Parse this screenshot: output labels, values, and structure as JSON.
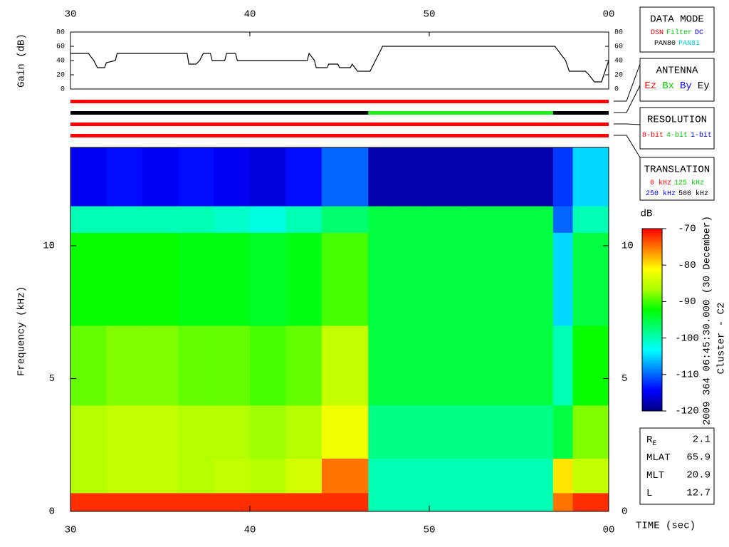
{
  "chart_data": [
    {
      "type": "line",
      "y_label": "Gain (dB)",
      "color": "#000000",
      "x": [
        30,
        31,
        31.3,
        31.5,
        31.9,
        32,
        32.5,
        32.6,
        36.5,
        36.6,
        37,
        37.2,
        37.4,
        37.8,
        37.9,
        38.6,
        38.7,
        39.2,
        39.3,
        43.2,
        43.3,
        43.6,
        43.7,
        44.3,
        44.4,
        44.9,
        45,
        45.6,
        45.7,
        46,
        46.7,
        47,
        47.4,
        57,
        57.6,
        57.8,
        58.7,
        58.9,
        59.2,
        59.6,
        59.8,
        60
      ],
      "values": [
        50,
        50,
        40,
        30,
        30,
        37,
        40,
        50,
        50,
        35,
        35,
        40,
        50,
        50,
        40,
        40,
        50,
        50,
        40,
        40,
        50,
        40,
        30,
        30,
        35,
        35,
        30,
        30,
        35,
        25,
        25,
        40,
        60,
        60,
        40,
        25,
        25,
        20,
        10,
        10,
        25,
        40
      ],
      "xlim": [
        30,
        60
      ],
      "xticks": [
        30,
        40,
        50,
        {
          "value": 60,
          "label": "00"
        }
      ],
      "ylim": [
        0,
        80
      ],
      "yticks": [
        0,
        20,
        40,
        60,
        80
      ]
    },
    {
      "type": "status",
      "xlim": [
        30,
        60
      ],
      "rows": [
        {
          "segments": [
            {
              "start": 30,
              "end": 60,
              "color": "#ff0000"
            }
          ]
        },
        {
          "segments": [
            {
              "start": 30,
              "end": 46.6,
              "color": "#000000"
            },
            {
              "start": 46.6,
              "end": 56.9,
              "color": "#22ee22"
            },
            {
              "start": 56.9,
              "end": 60,
              "color": "#000000"
            }
          ]
        },
        {
          "segments": [
            {
              "start": 30,
              "end": 60,
              "color": "#ff0000"
            }
          ]
        },
        {
          "segments": [
            {
              "start": 30,
              "end": 60,
              "color": "#ff0000"
            }
          ]
        }
      ]
    },
    {
      "type": "heatmap",
      "x_label": "TIME (sec)",
      "y_label": "Frequency (kHz)",
      "x_bins": [
        30,
        32,
        34,
        36,
        38,
        40,
        42,
        44,
        46.6,
        48,
        50,
        52,
        54,
        56.9,
        58,
        60
      ],
      "y_bins": [
        0,
        0.7,
        2,
        4,
        7,
        10.5,
        11.5,
        13.7
      ],
      "values": [
        [
          -72,
          -72,
          -72,
          -72,
          -72,
          -72,
          -72,
          -72,
          -100,
          -100,
          -100,
          -100,
          -100,
          -75,
          -72
        ],
        [
          -86,
          -85,
          -85,
          -86,
          -85,
          -86,
          -84,
          -75,
          -100,
          -100,
          -100,
          -100,
          -100,
          -80,
          -85
        ],
        [
          -86,
          -85,
          -85,
          -86,
          -86,
          -87,
          -86,
          -82,
          -98,
          -98,
          -98,
          -98,
          -98,
          -95,
          -88
        ],
        [
          -89,
          -88,
          -88,
          -89,
          -89,
          -90,
          -89,
          -85,
          -95,
          -95,
          -95,
          -95,
          -95,
          -100,
          -92
        ],
        [
          -92,
          -92,
          -92,
          -93,
          -93,
          -94,
          -93,
          -90,
          -95,
          -95,
          -95,
          -95,
          -95,
          -105,
          -95
        ],
        [
          -100,
          -100,
          -100,
          -100,
          -101,
          -102,
          -100,
          -97,
          -95,
          -95,
          -95,
          -95,
          -95,
          -110,
          -100
        ],
        [
          -115,
          -114,
          -115,
          -114,
          -115,
          -116,
          -114,
          -110,
          -118,
          -118,
          -118,
          -118,
          -118,
          -112,
          -105
        ]
      ],
      "xlim": [
        30,
        60
      ],
      "xticks": [
        30,
        40,
        50,
        {
          "value": 60,
          "label": "00"
        }
      ],
      "ylim": [
        0,
        13.7
      ],
      "yticks": [
        0,
        5,
        10
      ],
      "colorbar": {
        "label": "dB",
        "lim": [
          -120,
          -70
        ],
        "ticks": [
          -70,
          -80,
          -90,
          -100,
          -110,
          -120
        ],
        "colors": [
          "#00007f",
          "#0000ff",
          "#0080ff",
          "#00ffff",
          "#00ff80",
          "#00ff00",
          "#aaff00",
          "#ffff00",
          "#ff8000",
          "#ff0000"
        ]
      },
      "annotations": [
        "2009 364 06:45:30.000 (30 December)",
        "Cluster - C2"
      ]
    }
  ],
  "legends": [
    {
      "title": "DATA MODE",
      "rows": [
        [
          {
            "text": "DSN",
            "color": "#ff0000"
          },
          {
            "text": "Filter",
            "color": "#00cc00"
          },
          {
            "text": "DC",
            "color": "#0000ff"
          }
        ],
        [
          {
            "text": "PAN80",
            "color": "#000000"
          },
          {
            "text": "PAN81",
            "color": "#00cccc"
          }
        ]
      ]
    },
    {
      "title": "ANTENNA",
      "rows": [
        [
          {
            "text": "Ez",
            "color": "#ff0000"
          },
          {
            "text": "Bx",
            "color": "#00cc00"
          },
          {
            "text": "By",
            "color": "#0000ff"
          },
          {
            "text": "Ey",
            "color": "#000000"
          }
        ]
      ]
    },
    {
      "title": "RESOLUTION",
      "rows": [
        [
          {
            "text": "8-bit",
            "color": "#ff0000"
          },
          {
            "text": "4-bit",
            "color": "#00cc00"
          },
          {
            "text": "1-bit",
            "color": "#0000ff"
          }
        ]
      ]
    },
    {
      "title": "TRANSLATION",
      "rows": [
        [
          {
            "text": "0 kHz",
            "color": "#ff0000"
          },
          {
            "text": "125 kHz",
            "color": "#00cc00"
          }
        ],
        [
          {
            "text": "250 kHz",
            "color": "#0000ff"
          },
          {
            "text": "500 kHz",
            "color": "#000000"
          }
        ]
      ]
    }
  ],
  "ephemeris": [
    {
      "label": "R",
      "subscript": "E",
      "value": 2.1
    },
    {
      "label": "MLAT",
      "value": 65.9
    },
    {
      "label": "MLT",
      "value": 20.9
    },
    {
      "label": "L",
      "value": 12.7
    }
  ]
}
